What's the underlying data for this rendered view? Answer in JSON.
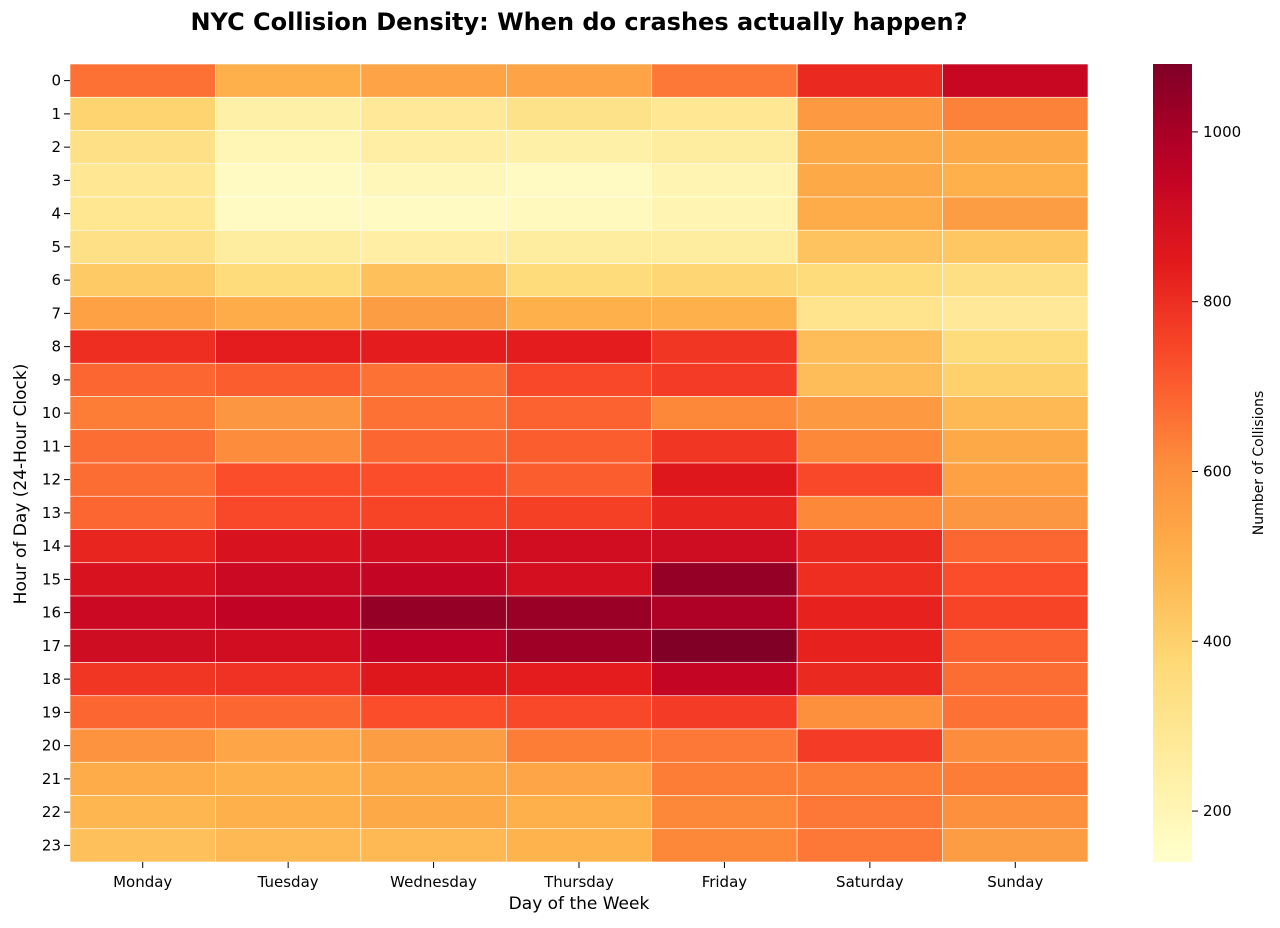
{
  "chart_data": {
    "type": "heatmap",
    "title": "NYC Collision Density: When do crashes actually happen?",
    "xlabel": "Day of the Week",
    "ylabel": "Hour of Day (24-Hour Clock)",
    "colorbar_label": "Number of Collisions",
    "colormap": "YlOrRd",
    "vmin": 140,
    "vmax": 1080,
    "colorbar_ticks": [
      200,
      400,
      600,
      800,
      1000
    ],
    "x": [
      "Monday",
      "Tuesday",
      "Wednesday",
      "Thursday",
      "Friday",
      "Saturday",
      "Sunday"
    ],
    "y": [
      "0",
      "1",
      "2",
      "3",
      "4",
      "5",
      "6",
      "7",
      "8",
      "9",
      "10",
      "11",
      "12",
      "13",
      "14",
      "15",
      "16",
      "17",
      "18",
      "19",
      "20",
      "21",
      "22",
      "23"
    ],
    "values": [
      [
        660,
        500,
        540,
        540,
        650,
        810,
        930
      ],
      [
        390,
        240,
        280,
        320,
        290,
        570,
        630
      ],
      [
        330,
        200,
        250,
        240,
        260,
        520,
        520
      ],
      [
        290,
        170,
        190,
        170,
        210,
        520,
        500
      ],
      [
        300,
        170,
        170,
        180,
        210,
        510,
        560
      ],
      [
        330,
        260,
        250,
        260,
        260,
        440,
        430
      ],
      [
        420,
        360,
        450,
        360,
        380,
        360,
        340
      ],
      [
        550,
        510,
        560,
        500,
        500,
        310,
        280
      ],
      [
        800,
        840,
        840,
        840,
        780,
        460,
        360
      ],
      [
        680,
        700,
        660,
        740,
        770,
        460,
        400
      ],
      [
        640,
        580,
        660,
        690,
        620,
        570,
        470
      ],
      [
        670,
        610,
        680,
        700,
        780,
        620,
        520
      ],
      [
        670,
        730,
        730,
        700,
        860,
        740,
        550
      ],
      [
        680,
        740,
        750,
        760,
        820,
        620,
        580
      ],
      [
        820,
        880,
        900,
        900,
        910,
        810,
        680
      ],
      [
        880,
        920,
        940,
        890,
        1040,
        800,
        730
      ],
      [
        920,
        950,
        1040,
        1030,
        990,
        830,
        750
      ],
      [
        910,
        900,
        960,
        1020,
        1080,
        830,
        690
      ],
      [
        780,
        790,
        860,
        840,
        940,
        810,
        670
      ],
      [
        680,
        680,
        730,
        740,
        770,
        600,
        660
      ],
      [
        590,
        530,
        560,
        640,
        650,
        770,
        610
      ],
      [
        510,
        500,
        520,
        530,
        640,
        640,
        640
      ],
      [
        480,
        500,
        520,
        500,
        620,
        650,
        600
      ],
      [
        450,
        470,
        470,
        490,
        620,
        650,
        560
      ]
    ]
  }
}
